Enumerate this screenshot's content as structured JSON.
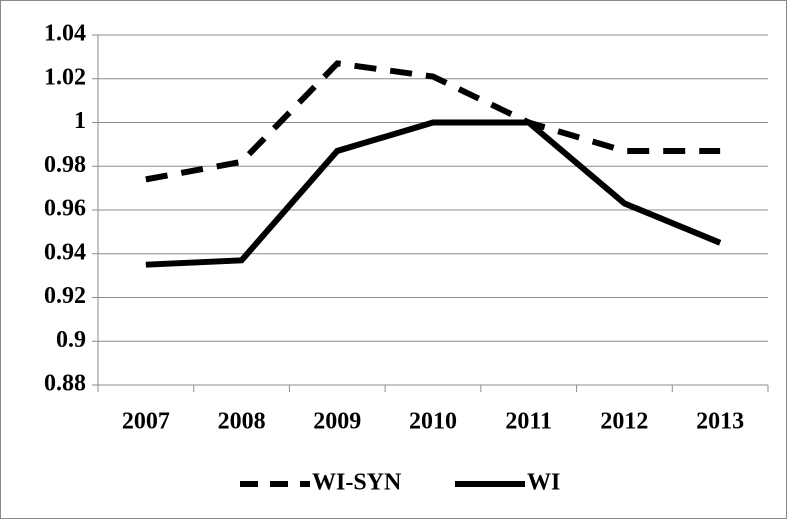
{
  "chart_data": {
    "type": "line",
    "categories": [
      "2007",
      "2008",
      "2009",
      "2010",
      "2011",
      "2012",
      "2013"
    ],
    "series": [
      {
        "name": "WI-SYN",
        "color": "#000000",
        "style": "dashed",
        "values": [
          0.974,
          0.982,
          1.027,
          1.021,
          1.0,
          0.987,
          0.987
        ]
      },
      {
        "name": "WI",
        "color": "#000000",
        "style": "solid",
        "values": [
          0.935,
          0.937,
          0.987,
          1.0,
          1.0,
          0.963,
          0.945
        ]
      }
    ],
    "ylim": [
      0.88,
      1.04
    ],
    "yticks": [
      0.88,
      0.9,
      0.92,
      0.94,
      0.96,
      0.98,
      1,
      1.02,
      1.04
    ],
    "grid": true,
    "legend": "bottom"
  }
}
